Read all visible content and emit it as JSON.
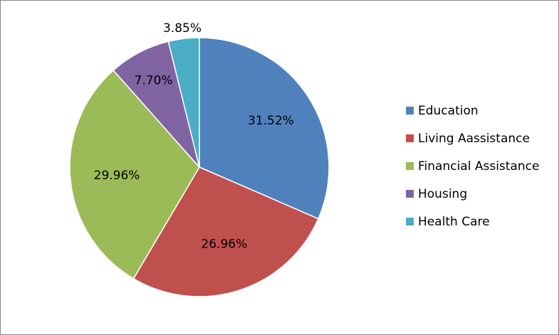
{
  "chart_data": {
    "type": "pie",
    "title": "",
    "legend_position": "right",
    "slices": [
      {
        "label": "Education",
        "value": 31.52,
        "display": "31.52%",
        "color": "#4F81BD"
      },
      {
        "label": "Living Aassistance",
        "value": 26.96,
        "display": "26.96%",
        "color": "#C0504D"
      },
      {
        "label": "Financial Assistance",
        "value": 29.96,
        "display": "29.96%",
        "color": "#9BBB59"
      },
      {
        "label": "Housing",
        "value": 7.7,
        "display": "7.70%",
        "color": "#8064A2"
      },
      {
        "label": "Health Care",
        "value": 3.85,
        "display": "3.85%",
        "color": "#4BACC6"
      }
    ]
  }
}
